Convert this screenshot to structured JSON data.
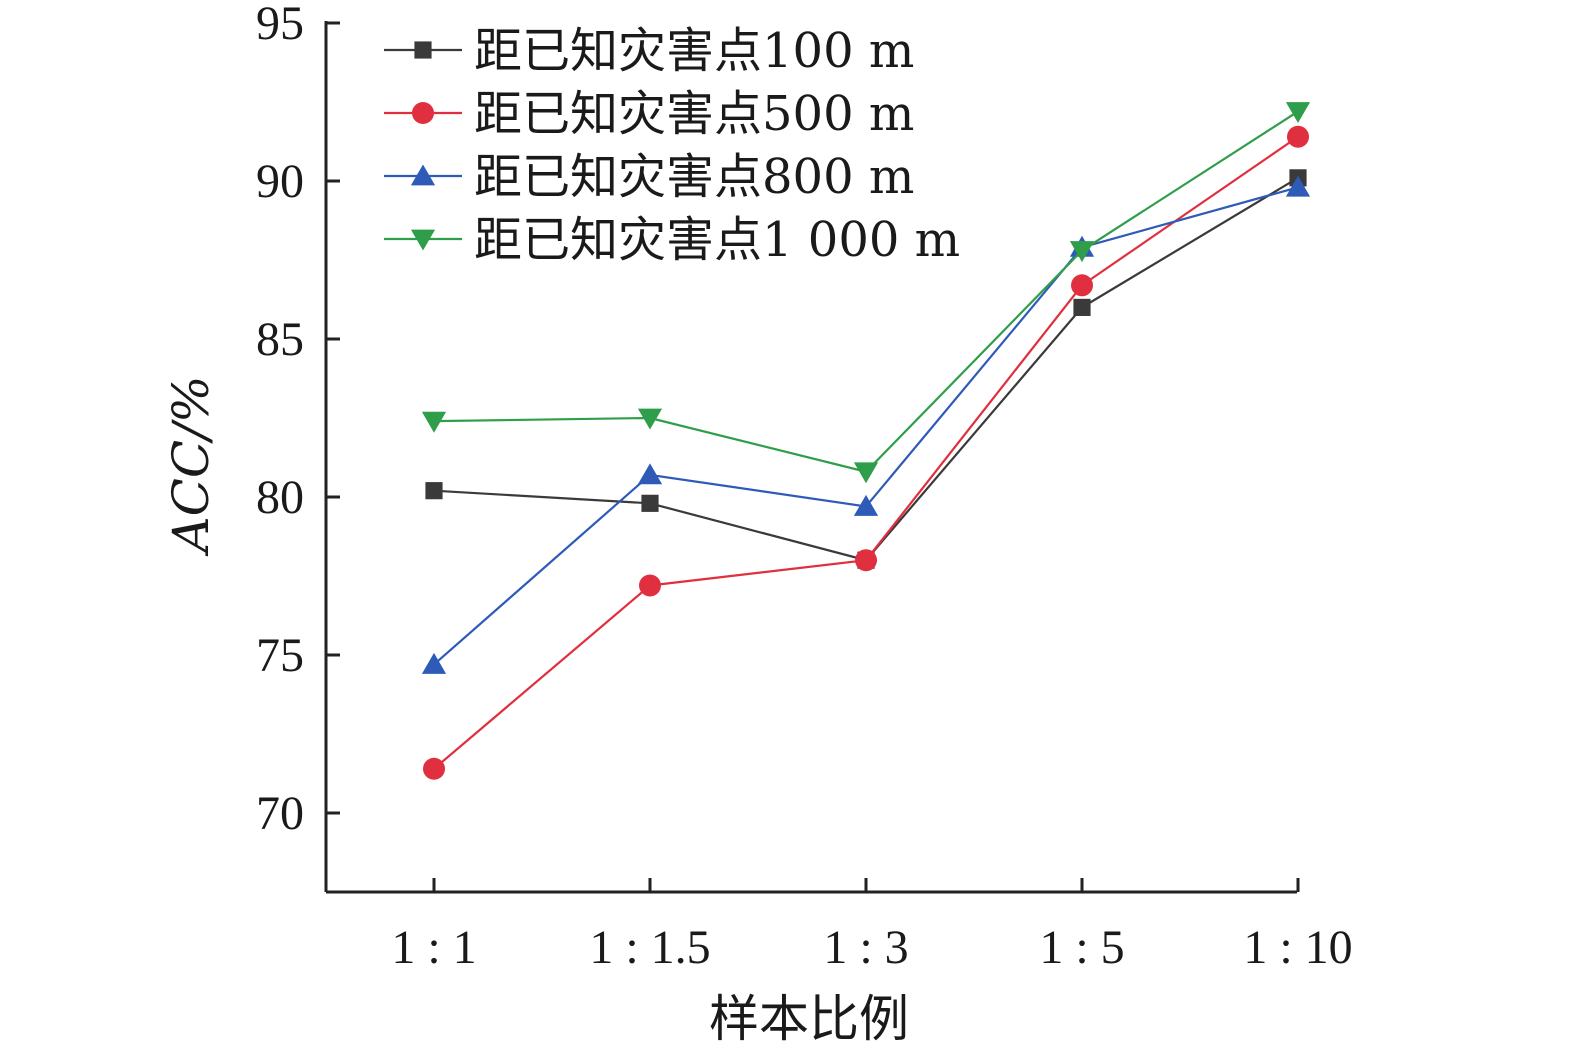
{
  "chart_data": {
    "type": "line",
    "categories": [
      "1 : 1",
      "1 : 1.5",
      "1 : 3",
      "1 : 5",
      "1 : 10"
    ],
    "xlabel": "样本比例",
    "ylabel": "ACC/%",
    "ylim": [
      67.5,
      95
    ],
    "yticks": [
      70,
      75,
      80,
      85,
      90,
      95
    ],
    "grid": false,
    "legend_position": "top-left",
    "series": [
      {
        "name": "距已知灾害点100 m",
        "color": "#3a3a3a",
        "marker": "square",
        "values": [
          80.2,
          79.8,
          78.0,
          86.0,
          90.1
        ]
      },
      {
        "name": "距已知灾害点500 m",
        "color": "#e02f3e",
        "marker": "circle",
        "values": [
          71.4,
          77.2,
          78.0,
          86.7,
          91.4
        ]
      },
      {
        "name": "距已知灾害点800 m",
        "color": "#2e5bb8",
        "marker": "triangle-up",
        "values": [
          74.7,
          80.7,
          79.7,
          87.9,
          89.8
        ]
      },
      {
        "name": "距已知灾害点1 000 m",
        "color": "#2f9e4a",
        "marker": "triangle-down",
        "values": [
          82.4,
          82.5,
          80.8,
          87.8,
          92.2
        ]
      }
    ]
  }
}
